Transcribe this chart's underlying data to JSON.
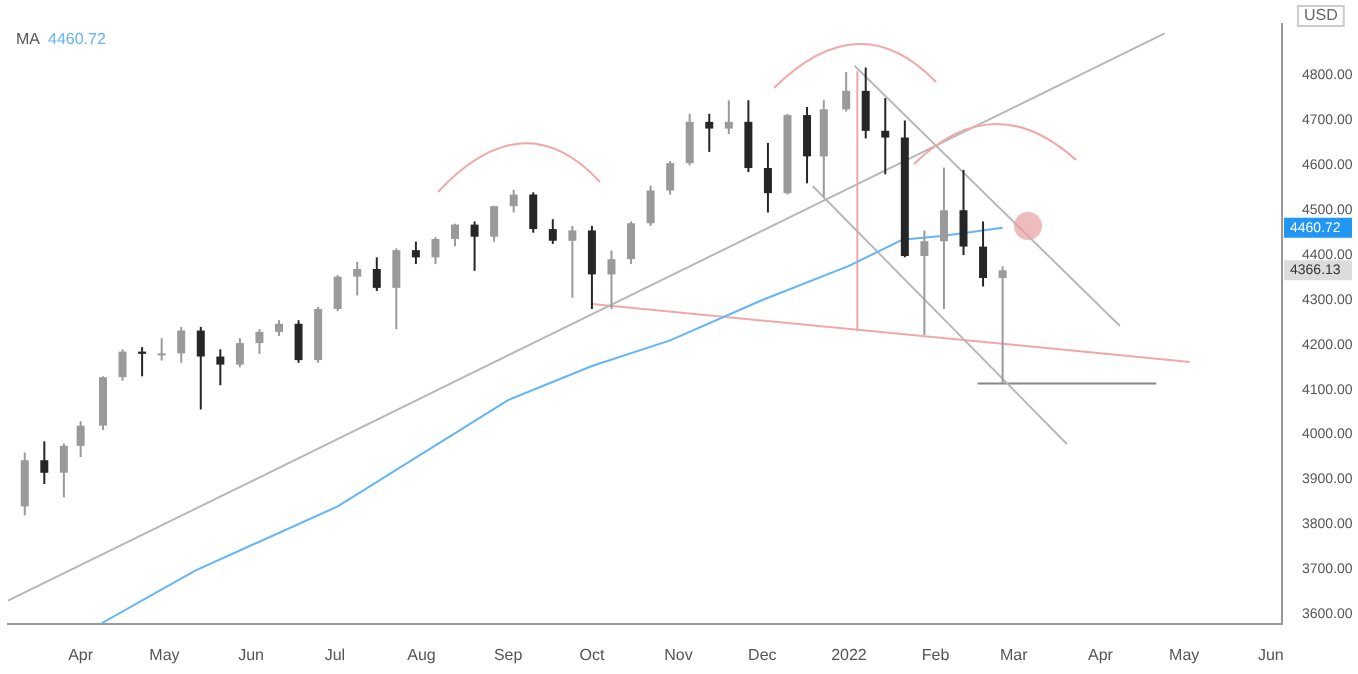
{
  "chart_data": {
    "type": "candlestick",
    "x": [
      "2021-03-12",
      "2021-03-19",
      "2021-03-26",
      "2021-04-01",
      "2021-04-09",
      "2021-04-16",
      "2021-04-23",
      "2021-04-30",
      "2021-05-07",
      "2021-05-14",
      "2021-05-21",
      "2021-05-28",
      "2021-06-04",
      "2021-06-11",
      "2021-06-18",
      "2021-06-25",
      "2021-07-02",
      "2021-07-09",
      "2021-07-16",
      "2021-07-23",
      "2021-07-30",
      "2021-08-06",
      "2021-08-13",
      "2021-08-20",
      "2021-08-27",
      "2021-09-03",
      "2021-09-10",
      "2021-09-17",
      "2021-09-24",
      "2021-10-01",
      "2021-10-08",
      "2021-10-15",
      "2021-10-22",
      "2021-10-29",
      "2021-11-05",
      "2021-11-12",
      "2021-11-19",
      "2021-11-26",
      "2021-12-03",
      "2021-12-10",
      "2021-12-17",
      "2021-12-23",
      "2021-12-31",
      "2022-01-07",
      "2022-01-14",
      "2022-01-21",
      "2022-01-28",
      "2022-02-04",
      "2022-02-11",
      "2022-02-18",
      "2022-02-25"
    ],
    "ohlc": [
      [
        3840,
        3960,
        3820,
        3943
      ],
      [
        3943,
        3985,
        3890,
        3915
      ],
      [
        3915,
        3980,
        3860,
        3975
      ],
      [
        3975,
        4030,
        3950,
        4020
      ],
      [
        4020,
        4130,
        4010,
        4128
      ],
      [
        4128,
        4190,
        4120,
        4185
      ],
      [
        4185,
        4195,
        4130,
        4180
      ],
      [
        4180,
        4215,
        4165,
        4181
      ],
      [
        4181,
        4240,
        4160,
        4232
      ],
      [
        4232,
        4240,
        4056,
        4174
      ],
      [
        4174,
        4190,
        4110,
        4156
      ],
      [
        4156,
        4215,
        4150,
        4204
      ],
      [
        4204,
        4235,
        4180,
        4229
      ],
      [
        4229,
        4255,
        4220,
        4247
      ],
      [
        4247,
        4255,
        4160,
        4166
      ],
      [
        4166,
        4285,
        4160,
        4280
      ],
      [
        4280,
        4355,
        4275,
        4352
      ],
      [
        4352,
        4385,
        4310,
        4369
      ],
      [
        4369,
        4395,
        4320,
        4327
      ],
      [
        4327,
        4415,
        4235,
        4411
      ],
      [
        4411,
        4430,
        4380,
        4395
      ],
      [
        4395,
        4440,
        4380,
        4436
      ],
      [
        4436,
        4470,
        4420,
        4468
      ],
      [
        4468,
        4475,
        4365,
        4441
      ],
      [
        4441,
        4510,
        4430,
        4509
      ],
      [
        4509,
        4545,
        4495,
        4535
      ],
      [
        4535,
        4540,
        4450,
        4458
      ],
      [
        4458,
        4480,
        4425,
        4432
      ],
      [
        4432,
        4465,
        4305,
        4455
      ],
      [
        4455,
        4465,
        4280,
        4357
      ],
      [
        4357,
        4410,
        4280,
        4391
      ],
      [
        4391,
        4475,
        4380,
        4471
      ],
      [
        4471,
        4555,
        4465,
        4544
      ],
      [
        4544,
        4610,
        4535,
        4605
      ],
      [
        4605,
        4715,
        4600,
        4697
      ],
      [
        4697,
        4715,
        4630,
        4682
      ],
      [
        4682,
        4745,
        4670,
        4697
      ],
      [
        4697,
        4745,
        4585,
        4594
      ],
      [
        4594,
        4650,
        4495,
        4538
      ],
      [
        4538,
        4715,
        4535,
        4712
      ],
      [
        4712,
        4730,
        4560,
        4620
      ],
      [
        4620,
        4745,
        4530,
        4725
      ],
      [
        4725,
        4808,
        4720,
        4766
      ],
      [
        4766,
        4818,
        4660,
        4677
      ],
      [
        4677,
        4750,
        4580,
        4662
      ],
      [
        4662,
        4700,
        4395,
        4398
      ],
      [
        4398,
        4455,
        4222,
        4431
      ],
      [
        4431,
        4595,
        4280,
        4500
      ],
      [
        4500,
        4590,
        4400,
        4419
      ],
      [
        4419,
        4475,
        4330,
        4349
      ],
      [
        4349,
        4375,
        4114,
        4366.13
      ]
    ],
    "series": [
      {
        "name": "MA",
        "type": "line",
        "color": "#64b5f6",
        "x": [
          "2021-04-08",
          "2021-05-12",
          "2021-07-02",
          "2021-09-01",
          "2021-10-01",
          "2021-10-29",
          "2021-12-01",
          "2022-01-01",
          "2022-01-20",
          "2022-02-04",
          "2022-02-25"
        ],
        "values": [
          3578,
          3697,
          3840,
          4077,
          4153,
          4210,
          4300,
          4376,
          4434,
          4443,
          4461
        ]
      },
      {
        "type": "line",
        "color": "#b8b8b8",
        "x": [
          "2021-03-06",
          "2022-04-24"
        ],
        "values": [
          3630,
          4894
        ]
      },
      {
        "type": "line",
        "color": "#b8b8b8",
        "x": [
          "2022-01-03",
          "2022-04-08"
        ],
        "values": [
          4822,
          4242
        ]
      },
      {
        "type": "line",
        "color": "#b8b8b8",
        "x": [
          "2021-12-19",
          "2022-03-20"
        ],
        "values": [
          4554,
          3979
        ]
      },
      {
        "type": "line",
        "color": "#f2a7a7",
        "x": [
          "2021-10-01",
          "2022-05-03"
        ],
        "values": [
          4291,
          4162
        ]
      },
      {
        "type": "line",
        "color": "#888888",
        "x": [
          "2022-02-16",
          "2022-04-21"
        ],
        "values": [
          4114,
          4114
        ]
      },
      {
        "type": "line",
        "color": "#f2a7a7",
        "x": [
          "2022-01-04",
          "2022-01-04"
        ],
        "values": [
          4808,
          4232
        ]
      }
    ],
    "annotations": [
      "4460.72",
      "USD",
      "4460.72",
      "4366.13"
    ],
    "legend": "top left",
    "marker": "none",
    "xlim": [
      "2021-03-06",
      "2022-06-05"
    ],
    "xticks": [
      {
        "value": "2021-04-01",
        "label": "Apr"
      },
      {
        "value": "2021-05-01",
        "label": "May"
      },
      {
        "value": "2021-06-01",
        "label": "Jun"
      },
      {
        "value": "2021-07-01",
        "label": "Jul"
      },
      {
        "value": "2021-08-01",
        "label": "Aug"
      },
      {
        "value": "2021-09-01",
        "label": "Sep"
      },
      {
        "value": "2021-10-01",
        "label": "Oct"
      },
      {
        "value": "2021-11-01",
        "label": "Nov"
      },
      {
        "value": "2021-12-01",
        "label": "Dec"
      },
      {
        "value": "2022-01-01",
        "label": "2022"
      },
      {
        "value": "2022-02-01",
        "label": "Feb"
      },
      {
        "value": "2022-03-01",
        "label": "Mar"
      },
      {
        "value": "2022-04-01",
        "label": "Apr"
      },
      {
        "value": "2022-05-01",
        "label": "May"
      },
      {
        "value": "2022-06-01",
        "label": "Jun"
      }
    ],
    "ylim": [
      3578,
      4915
    ],
    "yticks": [
      {
        "value": 3600,
        "label": "3600.00"
      },
      {
        "value": 3700,
        "label": "3700.00"
      },
      {
        "value": 3800,
        "label": "3800.00"
      },
      {
        "value": 3900,
        "label": "3900.00"
      },
      {
        "value": 4000,
        "label": "4000.00"
      },
      {
        "value": 4100,
        "label": "4100.00"
      },
      {
        "value": 4200,
        "label": "4200.00"
      },
      {
        "value": 4300,
        "label": "4300.00"
      },
      {
        "value": 4400,
        "label": "4400.00"
      },
      {
        "value": 4500,
        "label": "4500.00"
      },
      {
        "value": 4600,
        "label": "4600.00"
      },
      {
        "value": 4700,
        "label": "4700.00"
      },
      {
        "value": 4800,
        "label": "4800.00"
      }
    ]
  }
}
